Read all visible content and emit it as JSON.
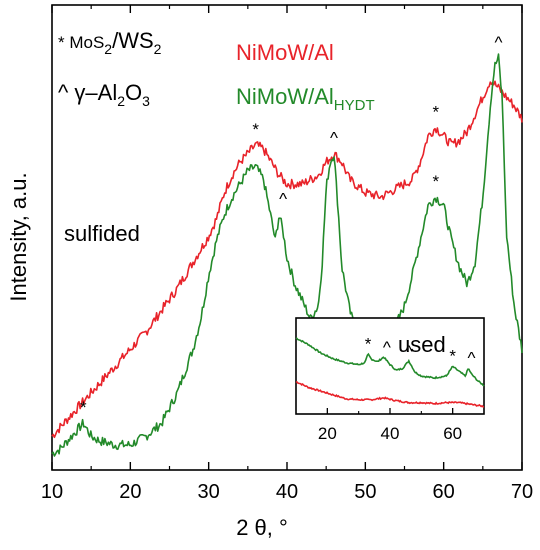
{
  "chart_data": {
    "type": "line",
    "xlabel": "2 θ, °",
    "ylabel": "Intensity, a.u.",
    "xlim": [
      10,
      70
    ],
    "xticks": [
      "10",
      "20",
      "30",
      "40",
      "50",
      "60",
      "70"
    ],
    "colors": {
      "red": "#e8232a",
      "green": "#238a2a"
    },
    "legend": {
      "mos2": "* MoS",
      "mos2_sub": "2",
      "mos2_slash": "/WS",
      "mos2_sub2": "2",
      "al2o3_a": "^ γ–Al",
      "al2o3_sub": "2",
      "al2o3_b": "O",
      "al2o3_sub2": "3",
      "red_label": "NiMoW/Al",
      "green_label": "NiMoW/Al",
      "green_sub": "HYDT"
    },
    "annotation": "sulfided",
    "series": [
      {
        "color": "red",
        "x": [
          10,
          12,
          14,
          16,
          18,
          20,
          22,
          24,
          26,
          28,
          30,
          31,
          32,
          33,
          34,
          35,
          36,
          37,
          38,
          39,
          40,
          42,
          44,
          45,
          46,
          47,
          48,
          50,
          52,
          54,
          56,
          57,
          58,
          59,
          60,
          61,
          62,
          63,
          64,
          65,
          66,
          67,
          68,
          69,
          70
        ],
        "y": [
          5,
          9,
          13,
          17,
          21,
          25,
          29,
          34,
          39,
          45,
          51,
          55,
          61,
          65,
          68,
          70,
          72,
          71,
          68,
          65,
          63,
          63,
          65,
          68,
          70,
          68,
          64,
          61,
          60,
          62,
          64,
          68,
          74,
          76,
          74,
          72,
          73,
          75,
          79,
          83,
          87,
          85,
          83,
          81,
          78
        ]
      },
      {
        "color": "green",
        "x": [
          10,
          11,
          12,
          13,
          14,
          15,
          16,
          18,
          20,
          22,
          24,
          26,
          28,
          29,
          30,
          31,
          32,
          33,
          34,
          35,
          36,
          37,
          38,
          38.5,
          39,
          39.5,
          40,
          41,
          42,
          43,
          44,
          44.5,
          45,
          45.5,
          46,
          46.5,
          47,
          48,
          49,
          50,
          51,
          52,
          53,
          54,
          55,
          56,
          57,
          58,
          59,
          60,
          61,
          62,
          63,
          64,
          65,
          66,
          66.5,
          67,
          67.5,
          68,
          69,
          70
        ],
        "y": [
          1,
          2,
          4,
          6,
          8,
          5,
          4,
          3,
          3,
          5,
          8,
          15,
          25,
          32,
          42,
          50,
          56,
          60,
          63,
          66,
          67,
          64,
          55,
          50,
          56,
          52,
          46,
          40,
          36,
          32,
          35,
          45,
          62,
          68,
          70,
          58,
          44,
          34,
          28,
          26,
          25,
          24,
          27,
          31,
          35,
          42,
          50,
          58,
          60,
          58,
          50,
          44,
          40,
          45,
          60,
          82,
          90,
          92,
          82,
          52,
          35,
          25
        ]
      }
    ],
    "markers": [
      {
        "symbol": "*",
        "x": 14,
        "y": 8
      },
      {
        "symbol": "*",
        "x": 36,
        "y": 72
      },
      {
        "symbol": "^",
        "x": 39.5,
        "y": 56
      },
      {
        "symbol": "^",
        "x": 46,
        "y": 70
      },
      {
        "symbol": "*",
        "x": 59,
        "y": 76
      },
      {
        "symbol": "*",
        "x": 59,
        "y": 60
      },
      {
        "symbol": "^",
        "x": 67,
        "y": 92
      }
    ],
    "inset": {
      "label": "used",
      "xlim": [
        10,
        70
      ],
      "xticks": [
        "20",
        "40",
        "60"
      ],
      "series": [
        {
          "color": "green",
          "x": [
            10,
            14,
            18,
            22,
            26,
            30,
            32,
            33,
            34,
            36,
            38,
            40,
            42,
            44,
            46,
            48,
            50,
            54,
            58,
            60,
            62,
            64,
            65,
            66,
            68,
            70
          ],
          "y": [
            80,
            73,
            64,
            58,
            54,
            52,
            54,
            63,
            58,
            55,
            60,
            52,
            46,
            48,
            56,
            44,
            40,
            38,
            40,
            50,
            45,
            40,
            48,
            42,
            35,
            30
          ]
        },
        {
          "color": "red",
          "x": [
            10,
            14,
            18,
            22,
            26,
            30,
            34,
            38,
            42,
            46,
            50,
            54,
            58,
            62,
            66,
            70
          ],
          "y": [
            34,
            28,
            24,
            20,
            16,
            15,
            15,
            17,
            14,
            12,
            12,
            11,
            12,
            12,
            10,
            8
          ]
        }
      ],
      "markers": [
        {
          "symbol": "*",
          "x": 33,
          "y": 66
        },
        {
          "symbol": "^",
          "x": 39,
          "y": 62
        },
        {
          "symbol": "^",
          "x": 46,
          "y": 58
        },
        {
          "symbol": "*",
          "x": 60,
          "y": 53
        },
        {
          "symbol": "^",
          "x": 66,
          "y": 51
        }
      ]
    }
  }
}
